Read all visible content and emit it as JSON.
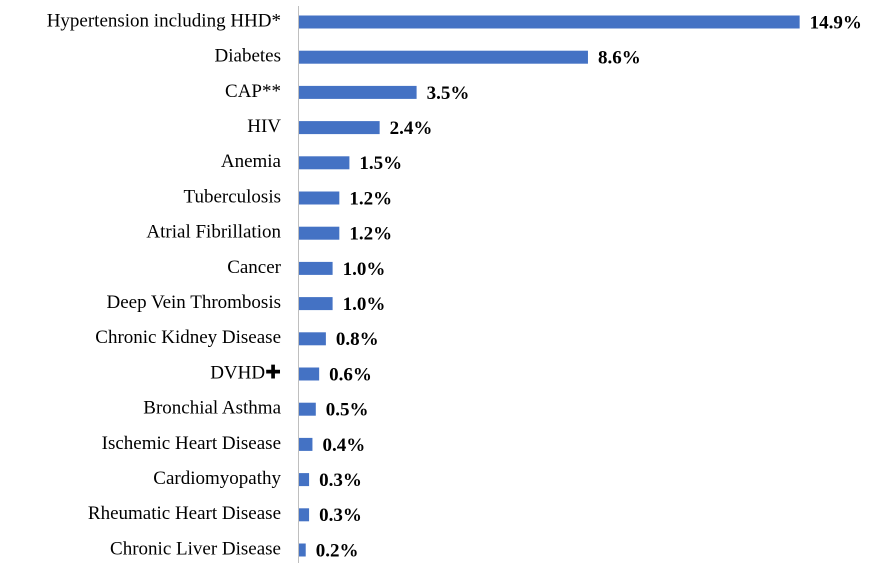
{
  "chart_data": {
    "type": "bar",
    "orientation": "horizontal",
    "color": "#4472c4",
    "categories": [
      "Hypertension including HHD*",
      "Diabetes",
      "CAP**",
      "HIV",
      "Anemia",
      "Tuberculosis",
      "Atrial Fibrillation",
      "Cancer",
      "Deep Vein Thrombosis",
      "Chronic Kidney Disease",
      "DVHD✚",
      "Bronchial Asthma",
      "Ischemic Heart Disease",
      "Cardiomyopathy",
      "Rheumatic Heart Disease",
      "Chronic Liver Disease"
    ],
    "values": [
      14.9,
      8.6,
      3.5,
      2.4,
      1.5,
      1.2,
      1.2,
      1.0,
      1.0,
      0.8,
      0.6,
      0.5,
      0.4,
      0.3,
      0.3,
      0.2
    ],
    "value_labels": [
      "14.9%",
      "8.6%",
      "3.5%",
      "2.4%",
      "1.5%",
      "1.2%",
      "1.2%",
      "1.0%",
      "1.0%",
      "0.8%",
      "0.6%",
      "0.5%",
      "0.4%",
      "0.3%",
      "0.3%",
      "0.2%"
    ]
  }
}
